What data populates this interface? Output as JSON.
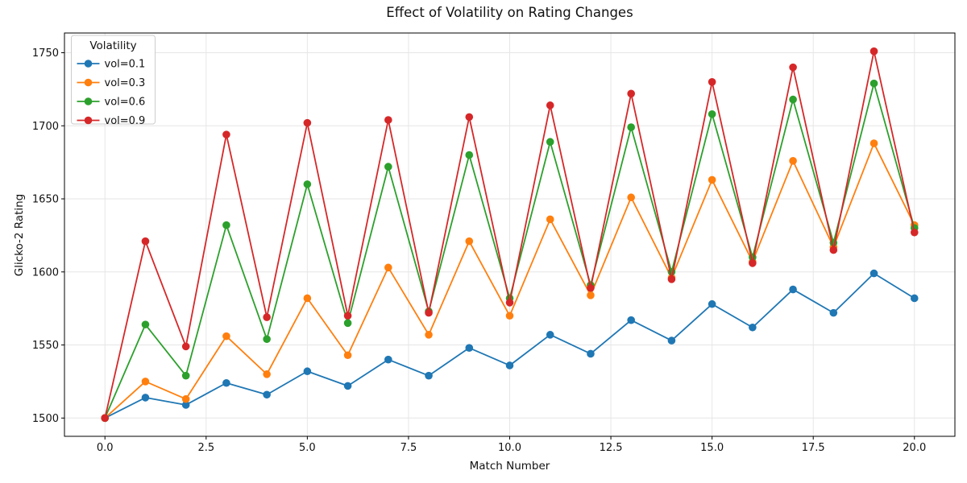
{
  "chart_data": {
    "type": "line",
    "title": "Effect of Volatility on Rating Changes",
    "xlabel": "Match Number",
    "ylabel": "Glicko-2 Rating",
    "x": [
      0,
      1,
      2,
      3,
      4,
      5,
      6,
      7,
      8,
      9,
      10,
      11,
      12,
      13,
      14,
      15,
      16,
      17,
      18,
      19,
      20
    ],
    "series": [
      {
        "name": "vol=0.1",
        "color": "#1f77b4",
        "values": [
          1500,
          1514,
          1509,
          1524,
          1516,
          1532,
          1522,
          1540,
          1529,
          1548,
          1536,
          1557,
          1544,
          1567,
          1553,
          1578,
          1562,
          1588,
          1572,
          1599,
          1582
        ]
      },
      {
        "name": "vol=0.3",
        "color": "#ff7f0e",
        "values": [
          1500,
          1525,
          1513,
          1556,
          1530,
          1582,
          1543,
          1603,
          1557,
          1621,
          1570,
          1636,
          1584,
          1651,
          1596,
          1663,
          1607,
          1676,
          1617,
          1688,
          1632
        ]
      },
      {
        "name": "vol=0.6",
        "color": "#2ca02c",
        "values": [
          1500,
          1564,
          1529,
          1632,
          1554,
          1660,
          1565,
          1672,
          1573,
          1680,
          1582,
          1689,
          1591,
          1699,
          1600,
          1708,
          1610,
          1718,
          1620,
          1729,
          1630
        ]
      },
      {
        "name": "vol=0.9",
        "color": "#d62728",
        "values": [
          1500,
          1621,
          1549,
          1694,
          1569,
          1702,
          1570,
          1704,
          1572,
          1706,
          1579,
          1714,
          1589,
          1722,
          1595,
          1730,
          1606,
          1740,
          1615,
          1751,
          1627
        ]
      }
    ],
    "xlim": [
      -1,
      21
    ],
    "ylim": [
      1487.5,
      1763.5
    ],
    "xticks": [
      0,
      2.5,
      5,
      7.5,
      10,
      12.5,
      15,
      17.5,
      20
    ],
    "xtick_labels": [
      "0.0",
      "2.5",
      "5.0",
      "7.5",
      "10.0",
      "12.5",
      "15.0",
      "17.5",
      "20.0"
    ],
    "yticks": [
      1500,
      1550,
      1600,
      1650,
      1700,
      1750
    ],
    "grid": true,
    "legend": {
      "title": "Volatility",
      "position": "upper left"
    },
    "marker": "o",
    "line_width": 1.8,
    "marker_radius": 4.8,
    "grid_color": "#e6e6e6",
    "spine_color": "#000000"
  }
}
